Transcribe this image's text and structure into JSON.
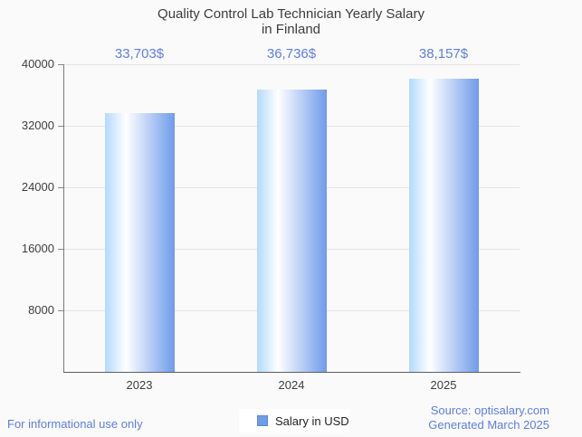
{
  "title": {
    "line1": "Quality Control Lab Technician Yearly Salary",
    "line2": "in Finland"
  },
  "chart_data": {
    "type": "bar",
    "title": "Quality Control Lab Technician Yearly Salary in Finland",
    "categories": [
      "2023",
      "2024",
      "2025"
    ],
    "values": [
      33703,
      36736,
      38157
    ],
    "bar_labels": [
      "33,703$",
      "36,736$",
      "38,157$"
    ],
    "series_name": "Salary in USD",
    "xlabel": "",
    "ylabel": "",
    "ylim": [
      0,
      40000
    ],
    "yticks": [
      8000,
      16000,
      24000,
      32000,
      40000
    ],
    "grid": true,
    "legend_position": "bottom"
  },
  "legend": {
    "label": "Salary in USD",
    "swatch_color": "#6d9ce9"
  },
  "footer": {
    "disclaimer": "For informational use only",
    "source": "Source: optisalary.com",
    "generated": "Generated March 2025"
  },
  "colors": {
    "background": "#fafafa",
    "accent_text": "#5e7ee1",
    "bar_edge_light": "#b3d9ff",
    "bar_highlight": "#ffffff",
    "bar_main": "#6f9bea",
    "gridline": "#e4e4e4",
    "axis": "#5f5f5f",
    "label_text": "#3f3f3f",
    "title_text": "#3d3d3d"
  }
}
